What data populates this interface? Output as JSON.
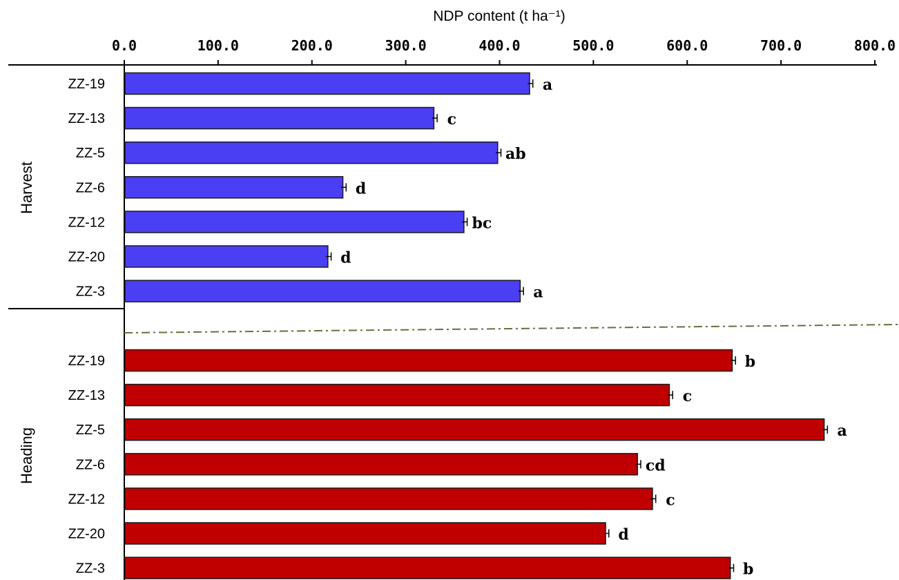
{
  "chart_data": {
    "type": "bar",
    "orientation": "horizontal",
    "title": "NDP content (t ha⁻¹)",
    "xlim": [
      0,
      800
    ],
    "xticks": [
      "0.0",
      "100.0",
      "200.0",
      "300.0",
      "400.0",
      "500.0",
      "600.0",
      "700.0",
      "800.0"
    ],
    "x_axis_position": "top",
    "groups": [
      {
        "name": "Harvest",
        "color": "#4a3ff2",
        "categories": [
          "ZZ-19",
          "ZZ-13",
          "ZZ-5",
          "ZZ-6",
          "ZZ-12",
          "ZZ-20",
          "ZZ-3"
        ],
        "values": [
          432,
          330,
          398,
          233,
          362,
          217,
          422
        ],
        "errors": [
          2,
          2,
          2,
          2,
          2,
          2,
          2
        ],
        "significance": [
          "a",
          "c",
          "ab",
          "d",
          "bc",
          "d",
          "a"
        ]
      },
      {
        "name": "Heading",
        "color": "#c00000",
        "categories": [
          "ZZ-19",
          "ZZ-13",
          "ZZ-5",
          "ZZ-6",
          "ZZ-12",
          "ZZ-20",
          "ZZ-3"
        ],
        "values": [
          648,
          581,
          746,
          547,
          563,
          513,
          646
        ],
        "errors": [
          2,
          2,
          2,
          2,
          2,
          2,
          2
        ],
        "significance": [
          "b",
          "c",
          "a",
          "cd",
          "c",
          "d",
          "b"
        ]
      }
    ]
  }
}
